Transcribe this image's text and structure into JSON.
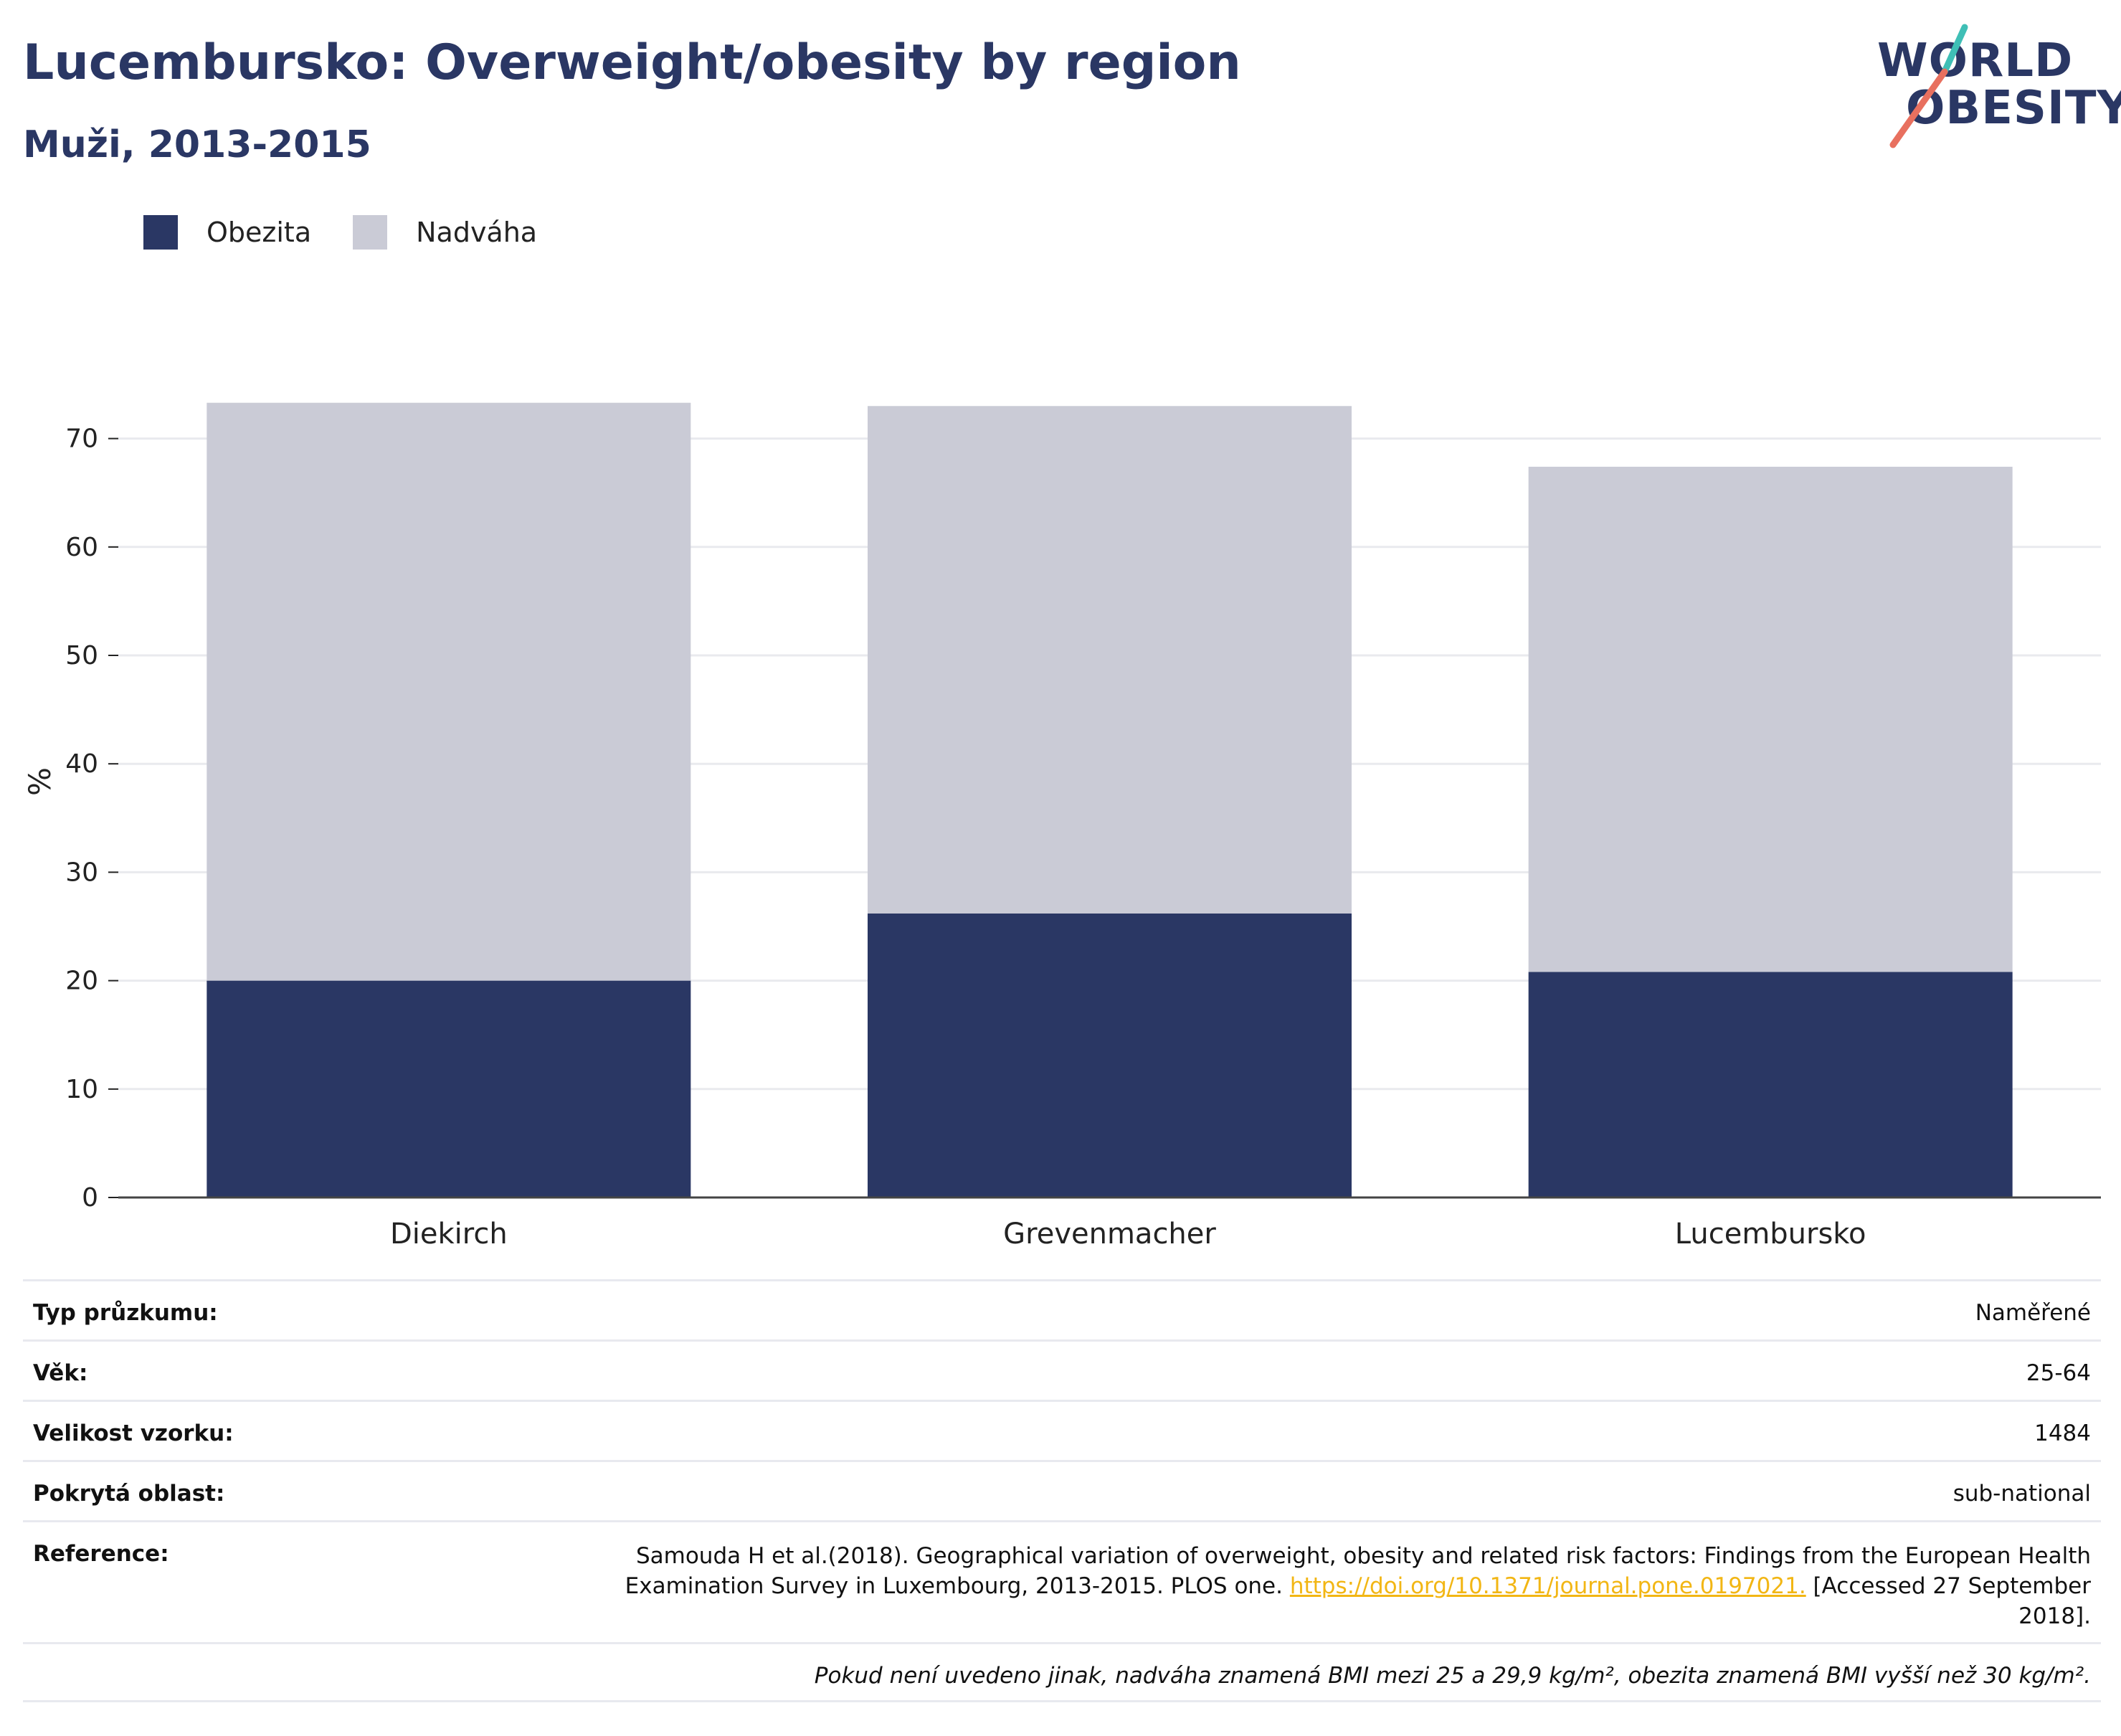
{
  "header": {
    "title": "Lucembursko: Overweight/obesity by region",
    "subtitle": "Muži, 2013-2015"
  },
  "logo": {
    "line1": "WORLD",
    "line2": "OBESITY",
    "colors": {
      "slash_top": "#3fbfb6",
      "slash_bottom": "#e8705f"
    }
  },
  "colors": {
    "obesity": "#2a3764",
    "overweight": "#cacbd6",
    "title": "#2a3764",
    "link": "#f2b614"
  },
  "chart_data": {
    "type": "bar",
    "stacked": true,
    "categories": [
      "Diekirch",
      "Grevenmacher",
      "Lucembursko"
    ],
    "series": [
      {
        "name": "Obezita",
        "color": "#2a3764",
        "values": [
          20.0,
          26.2,
          20.8
        ]
      },
      {
        "name": "Nadváha",
        "color": "#cacbd6",
        "values": [
          53.3,
          46.8,
          46.6
        ]
      }
    ],
    "totals": [
      73.3,
      73.0,
      67.4
    ],
    "ylabel": "%",
    "ylim": [
      0,
      73.5
    ],
    "yticks": [
      0,
      10,
      20,
      30,
      40,
      50,
      60,
      70
    ],
    "grid": true,
    "legend_position": "top-left"
  },
  "legend": [
    {
      "label": "Obezita",
      "color": "#2a3764"
    },
    {
      "label": "Nadváha",
      "color": "#cacbd6"
    }
  ],
  "info": {
    "survey_type": {
      "label": "Typ průzkumu:",
      "value": "Naměřené"
    },
    "age": {
      "label": "Věk:",
      "value": "25-64"
    },
    "sample_size": {
      "label": "Velikost vzorku:",
      "value": "1484"
    },
    "coverage": {
      "label": "Pokrytá oblast:",
      "value": "sub-national"
    },
    "reference": {
      "label": "Reference:",
      "text_before": "Samouda H et al.(2018). Geographical variation of overweight, obesity and related risk factors: Findings from the European Health Examination Survey in Luxembourg, 2013-2015. PLOS one. ",
      "link": "https://doi.org/10.1371/journal.pone.0197021.",
      "text_after": " [Accessed 27 September 2018]."
    },
    "note": "Pokud není uvedeno jinak, nadváha znamená BMI mezi 25 a 29,9 kg/m², obezita znamená BMI vyšší než 30 kg/m²."
  }
}
